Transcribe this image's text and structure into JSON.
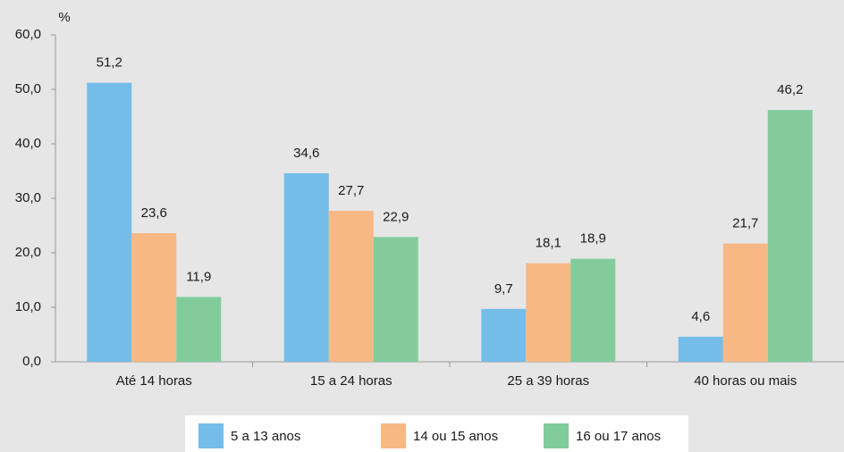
{
  "chart_data": {
    "type": "bar",
    "y_label": "%",
    "categories": [
      "Até 14 horas",
      "15 a 24 horas",
      "25 a 39 horas",
      "40 horas ou mais"
    ],
    "series": [
      {
        "name": "5 a 13 anos",
        "color": "#74bde8",
        "values": [
          51.2,
          34.6,
          9.7,
          4.6
        ],
        "value_labels": [
          "51,2",
          "34,6",
          "9,7",
          "4,6"
        ]
      },
      {
        "name": "14 ou 15 anos",
        "color": "#f8b884",
        "values": [
          23.6,
          27.7,
          18.1,
          21.7
        ],
        "value_labels": [
          "23,6",
          "27,7",
          "18,1",
          "21,7"
        ]
      },
      {
        "name": "16 ou 17 anos",
        "color": "#82cc9c",
        "values": [
          11.9,
          22.9,
          18.9,
          46.2
        ],
        "value_labels": [
          "11,9",
          "22,9",
          "18,9",
          "46,2"
        ]
      }
    ],
    "ylim": [
      0,
      60
    ],
    "yticks": [
      {
        "value": 0,
        "label": "0,0"
      },
      {
        "value": 10,
        "label": "10,0"
      },
      {
        "value": 20,
        "label": "20,0"
      },
      {
        "value": 30,
        "label": "30,0"
      },
      {
        "value": 40,
        "label": "40,0"
      },
      {
        "value": 50,
        "label": "50,0"
      },
      {
        "value": 60,
        "label": "60,0"
      }
    ],
    "legend": "bottom"
  }
}
